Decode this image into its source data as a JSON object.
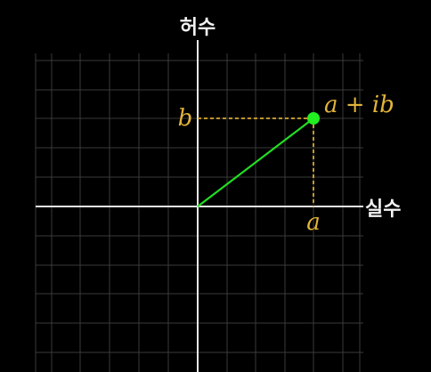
{
  "axes": {
    "imaginary_label": "허수",
    "real_label": "실수"
  },
  "point": {
    "label": "a + ib",
    "real_label": "a",
    "imag_label": "b"
  },
  "colors": {
    "background": "#000000",
    "grid": "#3a3a3a",
    "axis": "#e8e8e8",
    "vector": "#22dd22",
    "projection": "#d9a930",
    "label": "#e2b43a"
  }
}
